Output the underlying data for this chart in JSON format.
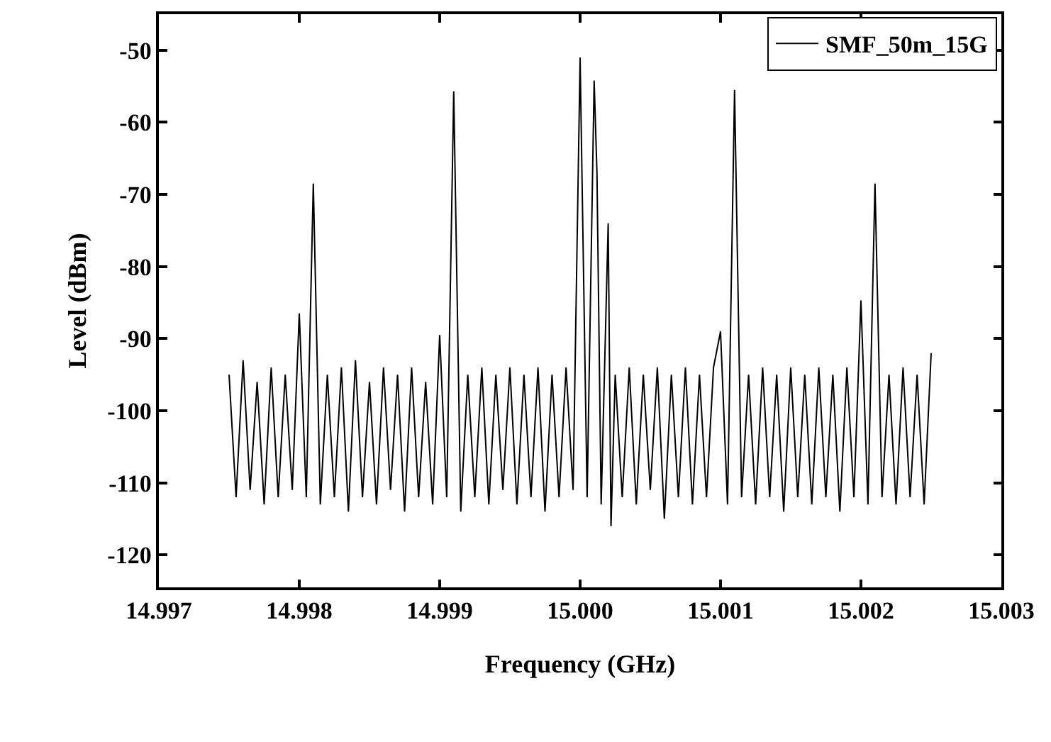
{
  "chart_data": {
    "type": "line",
    "xlabel": "Frequency (GHz)",
    "ylabel": "Level (dBm)",
    "xlim": [
      14.997,
      15.003
    ],
    "xticks": [
      14.997,
      14.998,
      14.999,
      {
        "value": 15.0,
        "label": "15.000"
      },
      15.001,
      15.002,
      15.003
    ],
    "ylim": [
      -124.5,
      -45
    ],
    "yticks": [
      -120,
      -110,
      -100,
      -90,
      -80,
      -70,
      -60,
      -50
    ],
    "legend": "top right",
    "marker": "none",
    "line_style": "solid",
    "series": [
      {
        "name": "SMF_50m_15G",
        "color": "#000000",
        "x": [
          14.9975,
          14.99755,
          14.9976,
          14.99765,
          14.9977,
          14.99775,
          14.9978,
          14.99785,
          14.9979,
          14.99795,
          14.998,
          14.99805,
          14.9981,
          14.99815,
          14.9982,
          14.99825,
          14.9983,
          14.99835,
          14.9984,
          14.99845,
          14.9985,
          14.99855,
          14.9986,
          14.99865,
          14.9987,
          14.99875,
          14.9988,
          14.99885,
          14.9989,
          14.99895,
          14.999,
          14.99905,
          14.9991,
          14.99915,
          14.9992,
          14.99925,
          14.9993,
          14.99935,
          14.9994,
          14.99945,
          14.9995,
          14.99955,
          14.9996,
          14.99965,
          14.9997,
          14.99975,
          14.9998,
          14.99985,
          14.9999,
          14.99995,
          15.0,
          15.00005,
          15.0001,
          15.00012,
          15.00015,
          15.0002,
          15.00022,
          15.00025,
          15.0003,
          15.00035,
          15.0004,
          15.00045,
          15.0005,
          15.00055,
          15.0006,
          15.00065,
          15.0007,
          15.00075,
          15.0008,
          15.00085,
          15.0009,
          15.00095,
          15.001,
          15.00105,
          15.0011,
          15.00115,
          15.0012,
          15.00125,
          15.0013,
          15.00135,
          15.0014,
          15.00145,
          15.0015,
          15.00155,
          15.0016,
          15.00165,
          15.0017,
          15.00175,
          15.0018,
          15.00185,
          15.0019,
          15.00195,
          15.002,
          15.00205,
          15.0021,
          15.00215,
          15.0022,
          15.00225,
          15.0023,
          15.00235,
          15.0024,
          15.00245,
          15.0025
        ],
        "values": [
          -95,
          -112,
          -93,
          -111,
          -96,
          -113,
          -94,
          -112,
          -95,
          -111,
          -86.5,
          -112,
          -68.5,
          -113,
          -95,
          -112,
          -94,
          -114,
          -93,
          -112,
          -96,
          -113,
          -94,
          -111,
          -95,
          -114,
          -94,
          -112,
          -96,
          -113,
          -89.5,
          -112,
          -55.7,
          -114,
          -95,
          -112,
          -94,
          -113,
          -95,
          -111,
          -94,
          -113,
          -95,
          -112,
          -94,
          -114,
          -95,
          -112,
          -94,
          -111,
          -51,
          -112,
          -54.2,
          -67,
          -113,
          -74,
          -116,
          -95,
          -112,
          -94,
          -113,
          -95,
          -111,
          -94,
          -115,
          -95,
          -112,
          -94,
          -113,
          -95,
          -112,
          -94,
          -89,
          -113,
          -55.5,
          -112,
          -95,
          -113,
          -94,
          -112,
          -95,
          -114,
          -94,
          -112,
          -95,
          -113,
          -94,
          -112,
          -95,
          -114,
          -94,
          -112,
          -84.7,
          -113,
          -68.5,
          -112,
          -95,
          -113,
          -94,
          -112,
          -95,
          -113,
          -92
        ]
      }
    ]
  }
}
